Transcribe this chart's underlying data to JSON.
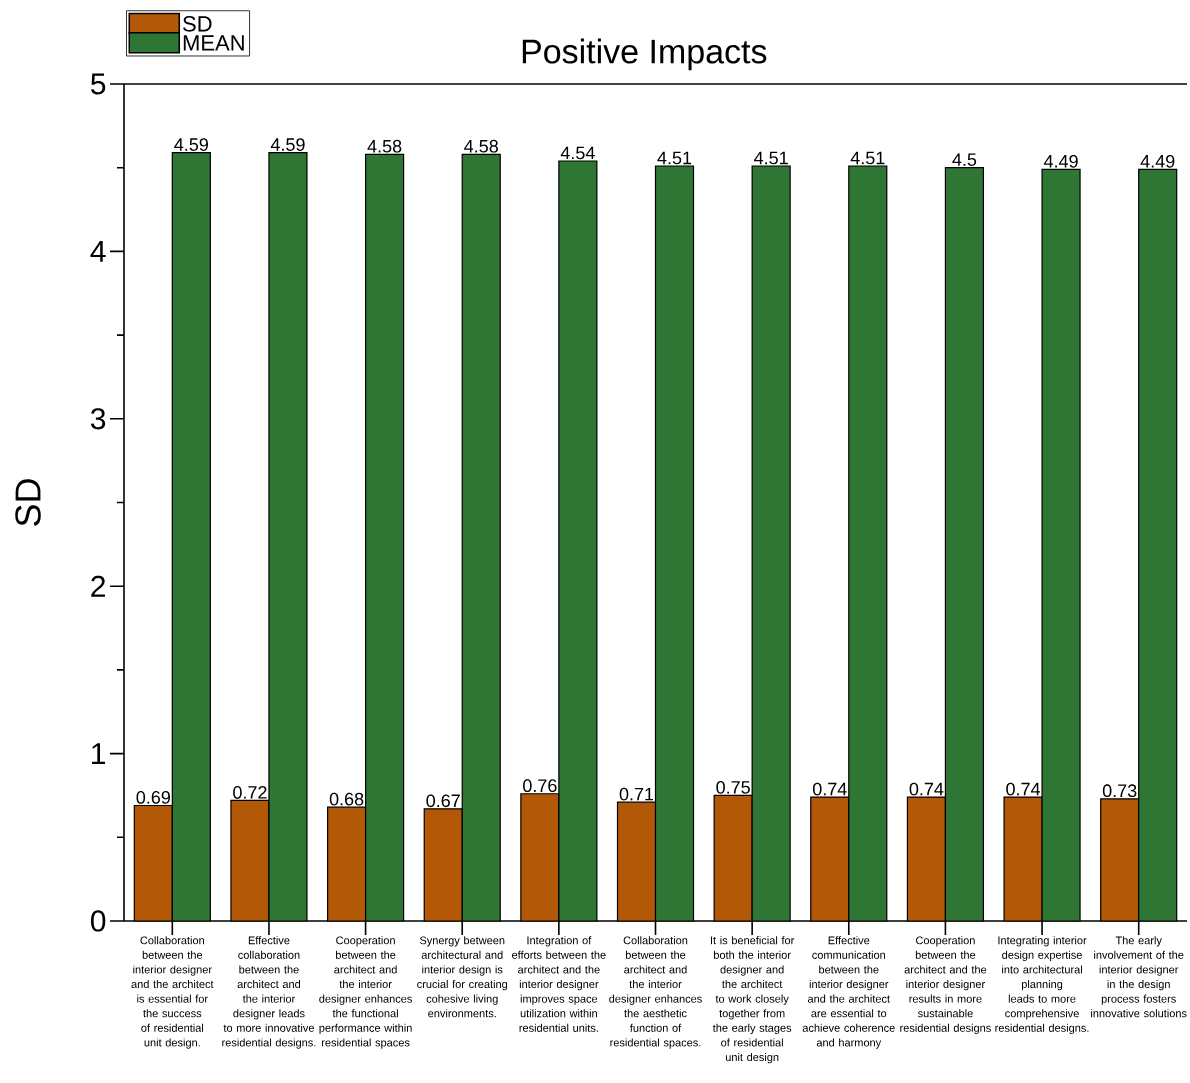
{
  "chart_data": {
    "type": "bar",
    "title": "Positive Impacts",
    "ylabel": "SD",
    "categories": [
      "Collaboration between the interior designer and the architect is essential for the success of residential unit design.",
      "Effective collaboration between the architect and the interior designer leads to more innovative residential designs.",
      "Cooperation between the architect and the interior designer enhances the functional performance within residential spaces",
      "Synergy between architectural and interior design is crucial for creating cohesive living environments.",
      "Integration of efforts between the architect and the interior designer improves space utilization within residential units.",
      "Collaboration between the architect and the interior designer enhances the aesthetic function of residential spaces.",
      "It is beneficial for both the interior designer and the architect to work closely together from the early stages of residential unit design",
      "Effective communication between the interior designer and the architect are essential to achieve coherence and harmony",
      "Cooperation between the architect and the interior designer results in more sustainable residential designs",
      "Integrating interior design expertise into architectural planning leads to more comprehensive residential designs.",
      "The early involvement of the interior designer in the design process fosters innovative solutions"
    ],
    "series": [
      {
        "name": "SD",
        "color": "#b35806",
        "values": [
          0.69,
          0.72,
          0.68,
          0.67,
          0.76,
          0.71,
          0.75,
          0.74,
          0.74,
          0.74,
          0.73
        ]
      },
      {
        "name": "MEAN",
        "color": "#2f7533",
        "values": [
          4.59,
          4.59,
          4.58,
          4.58,
          4.54,
          4.51,
          4.51,
          4.51,
          4.5,
          4.49,
          4.49
        ]
      }
    ],
    "ylim": [
      0,
      5
    ],
    "yticks": [
      0,
      {
        "value": 0.5,
        "label": null
      },
      1,
      {
        "value": 1.5,
        "label": null
      },
      2,
      {
        "value": 2.5,
        "label": null
      },
      3,
      {
        "value": 3.5,
        "label": null
      },
      4,
      {
        "value": 4.5,
        "label": null
      },
      5
    ],
    "data_labels": true,
    "legend": "top left",
    "grid": false
  }
}
